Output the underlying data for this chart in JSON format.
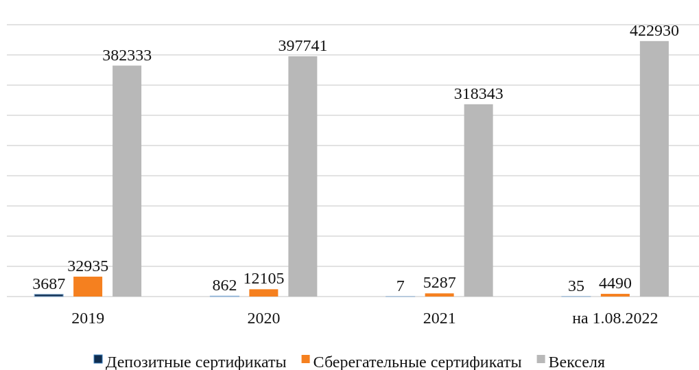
{
  "chart_data": {
    "type": "bar",
    "categories": [
      "2019",
      "2020",
      "2021",
      "на 1.08.2022"
    ],
    "series": [
      {
        "name": "Депозитные сертификаты",
        "color": "#0f2d4f",
        "values": [
          3687,
          862,
          7,
          35
        ]
      },
      {
        "name": "Сберегательные сертификаты",
        "color": "#f5801f",
        "values": [
          32935,
          12105,
          5287,
          4490
        ]
      },
      {
        "name": "Векселя",
        "color": "#b8b8b8",
        "values": [
          382333,
          397741,
          318343,
          422930
        ]
      }
    ],
    "ylim": [
      0,
      450000
    ],
    "tick_labels": "x",
    "grid": "y",
    "data_labels": true,
    "legend": "bottom"
  }
}
